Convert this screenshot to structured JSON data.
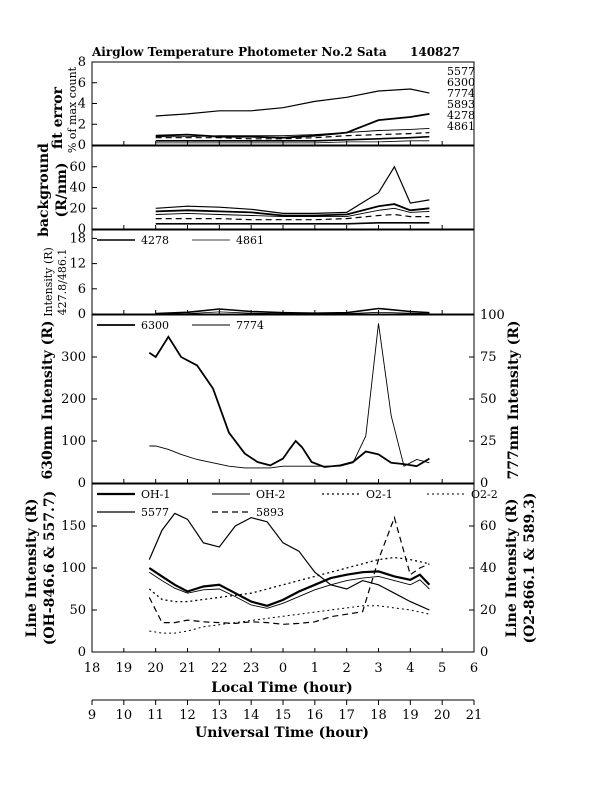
{
  "header": {
    "title": "Airglow Temperature Photometer No.2  Sata",
    "date": "140827"
  },
  "chart_data": [
    {
      "type": "line",
      "panel": "fit-error",
      "ylabel": "fit error",
      "ylabel2": "% of max count",
      "ylim": [
        0,
        8
      ],
      "yticks": [
        0,
        2,
        4,
        6,
        8
      ],
      "legend": [
        "5577",
        "6300",
        "7774",
        "5893",
        "4278",
        "4861"
      ],
      "x": [
        20.0,
        21.0,
        22.0,
        23.0,
        24.0,
        25.0,
        26.0,
        27.0,
        28.0,
        28.6
      ],
      "series": [
        {
          "name": "5577",
          "values": [
            2.8,
            3.0,
            3.3,
            3.3,
            3.6,
            4.2,
            4.6,
            5.2,
            5.4,
            5.0
          ]
        },
        {
          "name": "6300",
          "values": [
            0.9,
            1.0,
            0.8,
            0.8,
            0.7,
            0.9,
            1.2,
            2.4,
            2.7,
            3.0
          ]
        },
        {
          "name": "7774",
          "values": [
            0.8,
            0.8,
            0.9,
            0.9,
            0.9,
            1.0,
            1.2,
            1.4,
            1.5,
            1.6
          ]
        },
        {
          "name": "5893",
          "values": [
            0.7,
            0.7,
            0.7,
            0.6,
            0.6,
            0.7,
            0.9,
            1.0,
            1.1,
            1.2
          ]
        },
        {
          "name": "4278",
          "values": [
            0.4,
            0.4,
            0.4,
            0.4,
            0.4,
            0.4,
            0.5,
            0.6,
            0.7,
            0.8
          ]
        },
        {
          "name": "4861",
          "values": [
            0.2,
            0.2,
            0.2,
            0.2,
            0.2,
            0.2,
            0.3,
            0.3,
            0.4,
            0.4
          ]
        }
      ]
    },
    {
      "type": "line",
      "panel": "background",
      "ylabel": "background",
      "ylabel2": "(R/nm)",
      "ylim": [
        0,
        80
      ],
      "yticks": [
        0,
        20,
        40,
        60
      ],
      "x": [
        20.0,
        21.0,
        22.0,
        23.0,
        24.0,
        25.0,
        26.0,
        27.0,
        27.5,
        28.0,
        28.6
      ],
      "series": [
        {
          "name": "5577",
          "values": [
            20,
            22,
            21,
            19,
            15,
            15,
            16,
            35,
            60,
            25,
            28
          ]
        },
        {
          "name": "6300",
          "values": [
            17,
            18,
            17,
            16,
            13,
            13,
            14,
            22,
            24,
            18,
            20
          ]
        },
        {
          "name": "7774",
          "values": [
            14,
            15,
            14,
            13,
            12,
            12,
            12,
            18,
            20,
            16,
            17
          ]
        },
        {
          "name": "5893",
          "values": [
            10,
            10,
            10,
            9,
            9,
            9,
            10,
            13,
            14,
            12,
            12
          ]
        },
        {
          "name": "4278",
          "values": [
            5,
            5,
            5,
            5,
            5,
            5,
            5,
            6,
            6,
            6,
            6
          ]
        }
      ]
    },
    {
      "type": "line",
      "panel": "blue-lines",
      "ylabel": "Intensity (R)",
      "ylabel2": "427.8/486.1",
      "ylim": [
        0,
        20
      ],
      "yticks": [
        0,
        6,
        12,
        18
      ],
      "x": [
        20.0,
        21.0,
        22.0,
        23.0,
        24.0,
        25.0,
        26.0,
        27.0,
        28.0,
        28.6
      ],
      "series": [
        {
          "name": "4278",
          "values": [
            0.1,
            0.4,
            1.2,
            0.6,
            0.3,
            0.2,
            0.3,
            1.3,
            0.6,
            0.3
          ]
        },
        {
          "name": "4861",
          "values": [
            0.0,
            0.1,
            0.5,
            0.2,
            0.1,
            0.1,
            0.1,
            0.4,
            0.2,
            0.1
          ]
        }
      ]
    },
    {
      "type": "line",
      "panel": "red-ir",
      "ylabel": "630nm Intensity (R)",
      "ylabel_right": "777nm Intensity (R)",
      "ylim": [
        0,
        400
      ],
      "yticks": [
        0,
        100,
        200,
        300
      ],
      "ylim_right": [
        0,
        100
      ],
      "yticks_right": [
        0,
        25,
        50,
        75,
        100
      ],
      "x": [
        19.8,
        20.0,
        20.4,
        20.8,
        21.3,
        21.8,
        22.3,
        22.8,
        23.2,
        23.6,
        24.0,
        24.2,
        24.4,
        24.6,
        24.9,
        25.3,
        25.8,
        26.2,
        26.6,
        27.0,
        27.4,
        27.8,
        28.2,
        28.6
      ],
      "series": [
        {
          "name": "6300",
          "axis": "left",
          "values": [
            310,
            300,
            348,
            300,
            280,
            225,
            120,
            70,
            50,
            42,
            58,
            80,
            100,
            85,
            50,
            38,
            42,
            50,
            75,
            68,
            48,
            45,
            40,
            58
          ]
        },
        {
          "name": "7774",
          "axis": "right",
          "values": [
            22,
            22,
            20,
            17,
            14,
            12,
            10,
            9,
            9,
            9,
            10,
            10,
            10,
            10,
            10,
            10,
            10,
            12,
            28,
            95,
            40,
            10,
            14,
            12
          ]
        }
      ]
    },
    {
      "type": "line",
      "panel": "line-intensity",
      "ylabel": "Line Intensity (R)",
      "ylabel2": "(OH-846.6 & 557.7)",
      "ylabel_right": "Line Intensity (R)",
      "ylabel_right2": "(O2-866.1 & 589.3)",
      "ylim": [
        0,
        200
      ],
      "yticks": [
        0,
        50,
        100,
        150
      ],
      "ylim_right": [
        0,
        80
      ],
      "yticks_right": [
        0,
        20,
        40,
        60
      ],
      "x": [
        19.8,
        20.2,
        20.6,
        21.0,
        21.5,
        22.0,
        22.5,
        23.0,
        23.5,
        24.0,
        24.5,
        25.0,
        25.5,
        26.0,
        26.5,
        27.0,
        27.5,
        28.0,
        28.3,
        28.6
      ],
      "series": [
        {
          "name": "OH-1",
          "axis": "left",
          "values": [
            100,
            90,
            80,
            72,
            78,
            80,
            70,
            60,
            55,
            62,
            72,
            80,
            88,
            92,
            95,
            96,
            90,
            86,
            92,
            80
          ]
        },
        {
          "name": "OH-2",
          "axis": "left",
          "values": [
            95,
            85,
            76,
            70,
            74,
            75,
            66,
            56,
            52,
            58,
            66,
            74,
            80,
            85,
            88,
            90,
            85,
            80,
            86,
            75
          ]
        },
        {
          "name": "5577",
          "axis": "left",
          "values": [
            110,
            145,
            165,
            158,
            130,
            125,
            150,
            160,
            155,
            130,
            120,
            95,
            80,
            75,
            85,
            80,
            70,
            60,
            55,
            50
          ]
        },
        {
          "name": "5893",
          "axis": "left",
          "values": [
            65,
            35,
            35,
            38,
            36,
            35,
            34,
            36,
            35,
            33,
            34,
            36,
            42,
            45,
            48,
            110,
            160,
            92,
            100,
            105
          ]
        },
        {
          "name": "O2-1",
          "axis": "right",
          "values": [
            30,
            25,
            24,
            24,
            25,
            26,
            27,
            28,
            30,
            32,
            34,
            36,
            38,
            40,
            42,
            44,
            45,
            44,
            43,
            42
          ]
        },
        {
          "name": "O2-2",
          "axis": "right",
          "values": [
            10,
            9,
            9,
            10,
            12,
            13,
            14,
            15,
            16,
            17,
            18,
            19,
            20,
            21,
            22,
            22,
            21,
            20,
            19,
            18
          ]
        }
      ]
    }
  ],
  "xaxis": {
    "local_label": "Local Time (hour)",
    "local_ticks": [
      "18",
      "19",
      "20",
      "21",
      "22",
      "23",
      "0",
      "1",
      "2",
      "3",
      "4",
      "5",
      "6"
    ],
    "ut_label": "Universal Time (hour)",
    "ut_ticks": [
      "9",
      "10",
      "11",
      "12",
      "13",
      "14",
      "15",
      "16",
      "17",
      "18",
      "19",
      "20",
      "21"
    ]
  }
}
